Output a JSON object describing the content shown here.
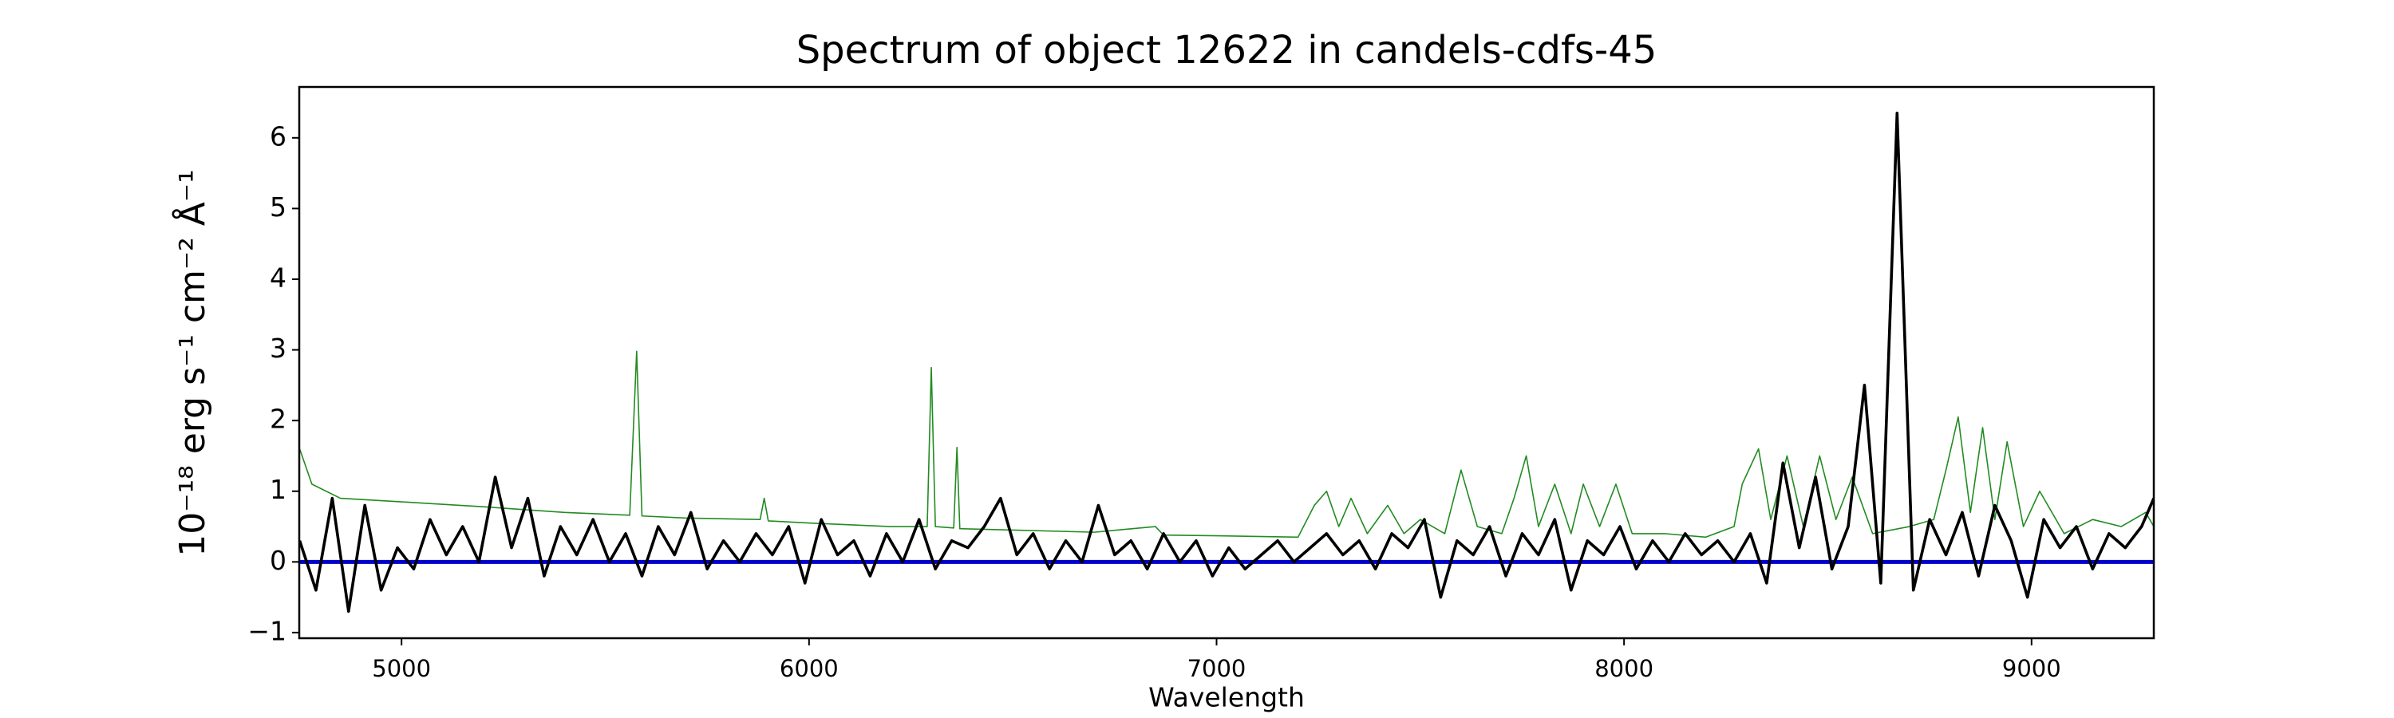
{
  "chart_data": {
    "type": "line",
    "title": "Spectrum of object 12622 in candels-cdfs-45",
    "xlabel": "Wavelength",
    "ylabel": "10⁻¹⁸ erg s⁻¹ cm⁻² Å⁻¹",
    "xlim": [
      4749,
      9300
    ],
    "ylim": [
      -1.08,
      6.72
    ],
    "xticks": [
      5000,
      6000,
      7000,
      8000,
      9000
    ],
    "yticks": [
      {
        "value": -1,
        "label": "−1"
      },
      0,
      1,
      2,
      3,
      4,
      5,
      6
    ],
    "grid": false,
    "series": [
      {
        "color": "#228b22",
        "x": [
          4750,
          4780,
          4850,
          5000,
          5200,
          5400,
          5560,
          5577,
          5590,
          5700,
          5880,
          5890,
          5900,
          6000,
          6200,
          6290,
          6300,
          6310,
          6355,
          6363,
          6370,
          6500,
          6700,
          6850,
          6870,
          7000,
          7200,
          7240,
          7270,
          7300,
          7330,
          7370,
          7420,
          7460,
          7500,
          7560,
          7600,
          7640,
          7700,
          7730,
          7760,
          7790,
          7830,
          7870,
          7900,
          7940,
          7980,
          8020,
          8100,
          8200,
          8270,
          8290,
          8330,
          8360,
          8400,
          8440,
          8480,
          8520,
          8560,
          8610,
          8700,
          8760,
          8790,
          8820,
          8850,
          8880,
          8910,
          8940,
          8980,
          9020,
          9080,
          9150,
          9220,
          9280,
          9300
        ],
        "values": [
          1.6,
          1.1,
          0.9,
          0.85,
          0.78,
          0.7,
          0.66,
          2.98,
          0.65,
          0.62,
          0.6,
          0.9,
          0.58,
          0.55,
          0.5,
          0.5,
          2.75,
          0.5,
          0.48,
          1.62,
          0.47,
          0.45,
          0.42,
          0.5,
          0.38,
          0.37,
          0.35,
          0.8,
          1.0,
          0.5,
          0.9,
          0.4,
          0.8,
          0.4,
          0.6,
          0.4,
          1.3,
          0.5,
          0.4,
          0.9,
          1.5,
          0.5,
          1.1,
          0.4,
          1.1,
          0.5,
          1.1,
          0.4,
          0.4,
          0.35,
          0.5,
          1.1,
          1.6,
          0.6,
          1.5,
          0.5,
          1.5,
          0.6,
          1.2,
          0.4,
          0.5,
          0.6,
          1.3,
          2.05,
          0.7,
          1.9,
          0.6,
          1.7,
          0.5,
          1.0,
          0.4,
          0.6,
          0.5,
          0.7,
          0.5
        ]
      },
      {
        "color": "#0000cc",
        "x": [
          4749,
          9300
        ],
        "values": [
          0,
          0
        ]
      },
      {
        "color": "#000000",
        "x": [
          4750,
          4790,
          4830,
          4870,
          4910,
          4950,
          4990,
          5030,
          5070,
          5110,
          5150,
          5190,
          5230,
          5270,
          5310,
          5350,
          5390,
          5430,
          5470,
          5510,
          5550,
          5590,
          5630,
          5670,
          5710,
          5750,
          5790,
          5830,
          5870,
          5910,
          5950,
          5990,
          6030,
          6070,
          6110,
          6150,
          6190,
          6230,
          6270,
          6310,
          6350,
          6390,
          6430,
          6470,
          6510,
          6550,
          6590,
          6630,
          6670,
          6710,
          6750,
          6790,
          6830,
          6870,
          6910,
          6950,
          6990,
          7030,
          7070,
          7110,
          7150,
          7190,
          7230,
          7270,
          7310,
          7350,
          7390,
          7430,
          7470,
          7510,
          7550,
          7590,
          7630,
          7670,
          7710,
          7750,
          7790,
          7830,
          7870,
          7910,
          7950,
          7990,
          8030,
          8070,
          8110,
          8150,
          8190,
          8230,
          8270,
          8310,
          8350,
          8390,
          8430,
          8470,
          8510,
          8550,
          8590,
          8630,
          8670,
          8710,
          8750,
          8790,
          8830,
          8870,
          8910,
          8950,
          8990,
          9030,
          9070,
          9110,
          9150,
          9190,
          9230,
          9270,
          9300
        ],
        "values": [
          0.3,
          -0.4,
          0.9,
          -0.7,
          0.8,
          -0.4,
          0.2,
          -0.1,
          0.6,
          0.1,
          0.5,
          0.0,
          1.2,
          0.2,
          0.9,
          -0.2,
          0.5,
          0.1,
          0.6,
          0.0,
          0.4,
          -0.2,
          0.5,
          0.1,
          0.7,
          -0.1,
          0.3,
          0.0,
          0.4,
          0.1,
          0.5,
          -0.3,
          0.6,
          0.1,
          0.3,
          -0.2,
          0.4,
          0.0,
          0.6,
          -0.1,
          0.3,
          0.2,
          0.5,
          0.9,
          0.1,
          0.4,
          -0.1,
          0.3,
          0.0,
          0.8,
          0.1,
          0.3,
          -0.1,
          0.4,
          0.0,
          0.3,
          -0.2,
          0.2,
          -0.1,
          0.1,
          0.3,
          0.0,
          0.2,
          0.4,
          0.1,
          0.3,
          -0.1,
          0.4,
          0.2,
          0.6,
          -0.5,
          0.3,
          0.1,
          0.5,
          -0.2,
          0.4,
          0.1,
          0.6,
          -0.4,
          0.3,
          0.1,
          0.5,
          -0.1,
          0.3,
          0.0,
          0.4,
          0.1,
          0.3,
          0.0,
          0.4,
          -0.3,
          1.4,
          0.2,
          1.2,
          -0.1,
          0.5,
          2.5,
          -0.3,
          6.35,
          -0.4,
          0.6,
          0.1,
          0.7,
          -0.2,
          0.8,
          0.3,
          -0.5,
          0.6,
          0.2,
          0.5,
          -0.1,
          0.4,
          0.2,
          0.5,
          0.9
        ]
      }
    ]
  }
}
